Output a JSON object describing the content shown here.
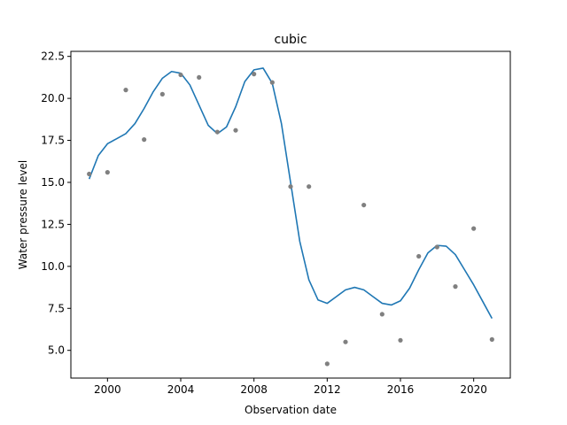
{
  "chart_data": {
    "type": "scatter",
    "title": "cubic",
    "xlabel": "Observation date",
    "ylabel": "Water pressure level",
    "xlim": [
      1998.0,
      2022.0
    ],
    "ylim": [
      3.35,
      22.8
    ],
    "xticks": [
      2000,
      2004,
      2008,
      2012,
      2016,
      2020
    ],
    "xtick_labels": [
      "2000",
      "2004",
      "2008",
      "2012",
      "2016",
      "2020"
    ],
    "yticks": [
      5.0,
      7.5,
      10.0,
      12.5,
      15.0,
      17.5,
      20.0,
      22.5
    ],
    "ytick_labels": [
      "5.0",
      "7.5",
      "10.0",
      "12.5",
      "15.0",
      "17.5",
      "20.0",
      "22.5"
    ],
    "grid": false,
    "series": [
      {
        "kind": "points",
        "color": "#808080",
        "x": [
          1999,
          2000,
          2001,
          2002,
          2003,
          2004,
          2005,
          2006,
          2007,
          2008,
          2009,
          2010,
          2011,
          2012,
          2013,
          2014,
          2015,
          2016,
          2017,
          2018,
          2019,
          2020,
          2021
        ],
        "y": [
          15.5,
          15.6,
          20.5,
          17.55,
          20.25,
          21.4,
          21.25,
          18.0,
          18.1,
          21.45,
          20.95,
          14.75,
          14.75,
          4.2,
          5.5,
          13.65,
          7.15,
          5.6,
          10.6,
          11.15,
          8.8,
          12.25,
          5.65
        ]
      },
      {
        "kind": "line",
        "color": "#1f77b4",
        "x": [
          1999.0,
          1999.5,
          2000.0,
          2000.5,
          2001.0,
          2001.5,
          2002.0,
          2002.5,
          2003.0,
          2003.5,
          2004.0,
          2004.5,
          2005.0,
          2005.5,
          2006.0,
          2006.5,
          2007.0,
          2007.5,
          2008.0,
          2008.5,
          2009.0,
          2009.5,
          2010.0,
          2010.5,
          2011.0,
          2011.5,
          2012.0,
          2012.5,
          2013.0,
          2013.5,
          2014.0,
          2014.5,
          2015.0,
          2015.5,
          2016.0,
          2016.5,
          2017.0,
          2017.5,
          2018.0,
          2018.5,
          2019.0,
          2019.5,
          2020.0,
          2020.5,
          2021.0
        ],
        "y": [
          15.2,
          16.6,
          17.3,
          17.6,
          17.9,
          18.5,
          19.4,
          20.4,
          21.2,
          21.6,
          21.5,
          20.8,
          19.6,
          18.4,
          17.9,
          18.3,
          19.5,
          21.0,
          21.7,
          21.8,
          20.9,
          18.5,
          15.0,
          11.5,
          9.2,
          8.0,
          7.8,
          8.2,
          8.6,
          8.75,
          8.6,
          8.2,
          7.8,
          7.7,
          7.95,
          8.7,
          9.8,
          10.8,
          11.25,
          11.2,
          10.7,
          9.8,
          8.9,
          7.9,
          6.9
        ]
      }
    ]
  }
}
